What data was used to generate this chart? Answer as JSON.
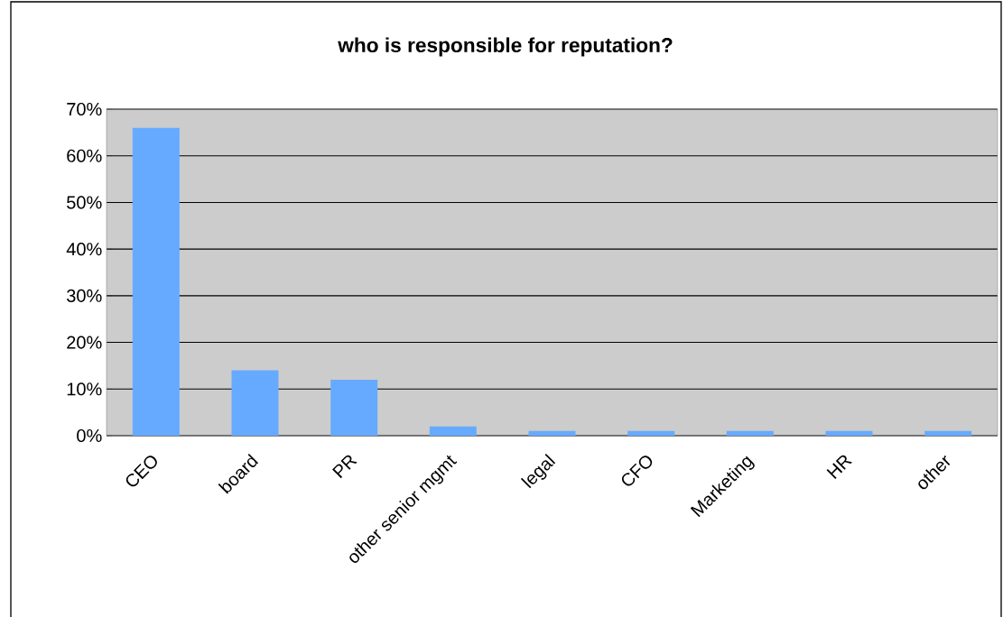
{
  "chart_data": {
    "type": "bar",
    "title": "who is responsible for reputation?",
    "categories": [
      "CEO",
      "board",
      "PR",
      "other senior mgmt",
      "legal",
      "CFO",
      "Marketing",
      "HR",
      "other"
    ],
    "values": [
      66,
      14,
      12,
      2,
      1,
      1,
      1,
      1,
      1
    ],
    "color": "#66aaff",
    "ylim": [
      0,
      70
    ],
    "yticks": [
      {
        "value": 0,
        "label": "0%"
      },
      {
        "value": 10,
        "label": "10%"
      },
      {
        "value": 20,
        "label": "20%"
      },
      {
        "value": 30,
        "label": "30%"
      },
      {
        "value": 40,
        "label": "40%"
      },
      {
        "value": 50,
        "label": "50%"
      },
      {
        "value": 60,
        "label": "60%"
      },
      {
        "value": 70,
        "label": "70%"
      }
    ],
    "grid": "y"
  }
}
